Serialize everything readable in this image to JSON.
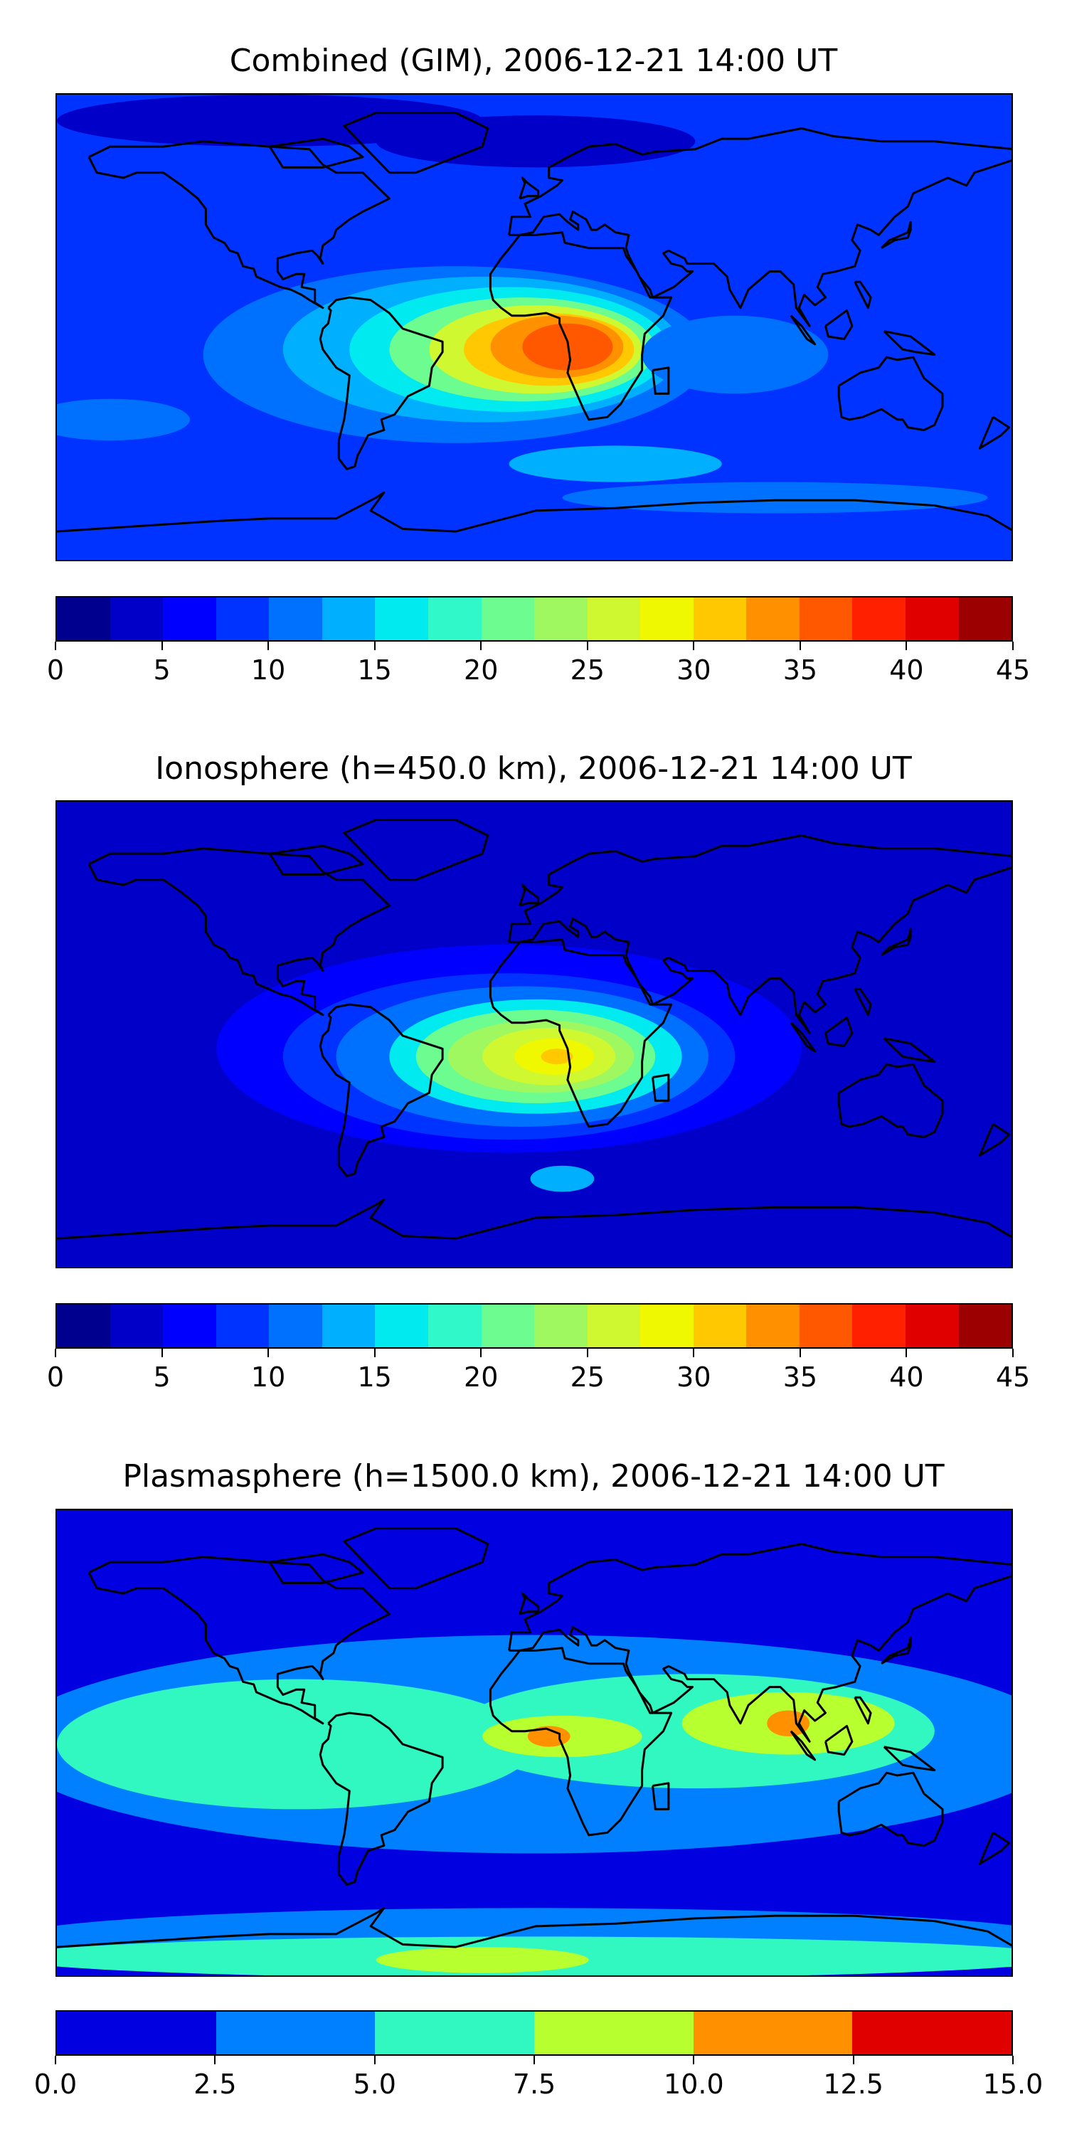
{
  "chart_data": [
    {
      "type": "heatmap",
      "title": "Combined (GIM), 2006-12-21 14:00 UT",
      "colorbar": {
        "ticks": [
          "0",
          "5",
          "10",
          "15",
          "20",
          "25",
          "30",
          "35",
          "40",
          "45"
        ],
        "levels": [
          0,
          2.5,
          5,
          7.5,
          10,
          12.5,
          15,
          17.5,
          20,
          22.5,
          25,
          27.5,
          30,
          32.5,
          35,
          37.5,
          40,
          42.5,
          45
        ],
        "colors": [
          "#00008f",
          "#0000c8",
          "#0000ff",
          "#0033ff",
          "#0070ff",
          "#00b0ff",
          "#00eaf0",
          "#30f8c8",
          "#6cfc90",
          "#a0f860",
          "#d0f830",
          "#f0f800",
          "#ffc800",
          "#ff9000",
          "#ff5800",
          "#ff2000",
          "#e00000",
          "#9c0000"
        ]
      },
      "background_level": 3,
      "features": [
        {
          "lon": -30,
          "lat": -10,
          "rx": 95,
          "ry": 34,
          "level": 4
        },
        {
          "lon": -20,
          "lat": -8,
          "rx": 75,
          "ry": 28,
          "level": 5
        },
        {
          "lon": -10,
          "lat": -8,
          "rx": 60,
          "ry": 24,
          "level": 6
        },
        {
          "lon": -5,
          "lat": -8,
          "rx": 50,
          "ry": 20,
          "level": 8
        },
        {
          "lon": 0,
          "lat": -8,
          "rx": 40,
          "ry": 17,
          "level": 10
        },
        {
          "lon": 5,
          "lat": -8,
          "rx": 32,
          "ry": 14,
          "level": 12
        },
        {
          "lon": 8,
          "lat": -7,
          "rx": 25,
          "ry": 12,
          "level": 13
        },
        {
          "lon": 12,
          "lat": -7,
          "rx": 17,
          "ry": 9,
          "level": 14
        },
        {
          "lon": 75,
          "lat": -10,
          "rx": 35,
          "ry": 15,
          "level": 4
        },
        {
          "lon": -160,
          "lat": -35,
          "rx": 30,
          "ry": 8,
          "level": 4
        },
        {
          "lon": 30,
          "lat": -52,
          "rx": 40,
          "ry": 7,
          "level": 5
        },
        {
          "lon": 90,
          "lat": -65,
          "rx": 80,
          "ry": 6,
          "level": 4
        },
        {
          "lon": 0,
          "lat": 72,
          "rx": 60,
          "ry": 10,
          "level": 1
        },
        {
          "lon": -100,
          "lat": 80,
          "rx": 80,
          "ry": 10,
          "level": 1
        }
      ]
    },
    {
      "type": "heatmap",
      "title": "Ionosphere  (h=450.0 km), 2006-12-21 14:00 UT",
      "colorbar": {
        "ticks": [
          "0",
          "5",
          "10",
          "15",
          "20",
          "25",
          "30",
          "35",
          "40",
          "45"
        ],
        "levels": [
          0,
          2.5,
          5,
          7.5,
          10,
          12.5,
          15,
          17.5,
          20,
          22.5,
          25,
          27.5,
          30,
          32.5,
          35,
          37.5,
          40,
          42.5,
          45
        ],
        "colors": [
          "#00008f",
          "#0000c8",
          "#0000ff",
          "#0033ff",
          "#0070ff",
          "#00b0ff",
          "#00eaf0",
          "#30f8c8",
          "#6cfc90",
          "#a0f860",
          "#d0f830",
          "#f0f800",
          "#ffc800",
          "#ff9000",
          "#ff5800",
          "#ff2000",
          "#e00000",
          "#9c0000"
        ]
      },
      "background_level": 1,
      "features": [
        {
          "lon": -10,
          "lat": -5,
          "rx": 110,
          "ry": 40,
          "level": 2
        },
        {
          "lon": -10,
          "lat": -8,
          "rx": 85,
          "ry": 32,
          "level": 3
        },
        {
          "lon": -5,
          "lat": -8,
          "rx": 70,
          "ry": 27,
          "level": 4
        },
        {
          "lon": 0,
          "lat": -8,
          "rx": 55,
          "ry": 22,
          "level": 6
        },
        {
          "lon": 0,
          "lat": -8,
          "rx": 45,
          "ry": 18,
          "level": 8
        },
        {
          "lon": 2,
          "lat": -8,
          "rx": 35,
          "ry": 14,
          "level": 9
        },
        {
          "lon": 5,
          "lat": -8,
          "rx": 25,
          "ry": 11,
          "level": 10
        },
        {
          "lon": 7,
          "lat": -8,
          "rx": 15,
          "ry": 7,
          "level": 11
        },
        {
          "lon": 8,
          "lat": -8,
          "rx": 6,
          "ry": 3,
          "level": 12
        },
        {
          "lon": 10,
          "lat": -55,
          "rx": 12,
          "ry": 5,
          "level": 5
        }
      ]
    },
    {
      "type": "heatmap",
      "title": "Plasmasphere (h=1500.0 km), 2006-12-21 14:00 UT",
      "colorbar": {
        "ticks": [
          "0.0",
          "2.5",
          "5.0",
          "7.5",
          "10.0",
          "12.5",
          "15.0"
        ],
        "levels": [
          0,
          2.5,
          5,
          7.5,
          10,
          12.5,
          15
        ],
        "colors": [
          "#0000e0",
          "#0080ff",
          "#30f8c0",
          "#b8ff30",
          "#ff9000",
          "#e00000"
        ]
      },
      "background_level": 0,
      "features": [
        {
          "lon": 0,
          "lat": 0,
          "rx": 200,
          "ry": 42,
          "level": 1
        },
        {
          "lon": -90,
          "lat": 0,
          "rx": 90,
          "ry": 25,
          "level": 2
        },
        {
          "lon": 60,
          "lat": 5,
          "rx": 90,
          "ry": 22,
          "level": 2
        },
        {
          "lon": 10,
          "lat": 3,
          "rx": 30,
          "ry": 8,
          "level": 3
        },
        {
          "lon": 95,
          "lat": 8,
          "rx": 40,
          "ry": 12,
          "level": 3
        },
        {
          "lon": 5,
          "lat": 3,
          "rx": 8,
          "ry": 4,
          "level": 4
        },
        {
          "lon": 95,
          "lat": 8,
          "rx": 8,
          "ry": 5,
          "level": 4
        },
        {
          "lon": 0,
          "lat": -75,
          "rx": 200,
          "ry": 12,
          "level": 1
        },
        {
          "lon": 0,
          "lat": -82,
          "rx": 200,
          "ry": 8,
          "level": 2
        },
        {
          "lon": -20,
          "lat": -83,
          "rx": 40,
          "ry": 5,
          "level": 3
        }
      ]
    }
  ]
}
